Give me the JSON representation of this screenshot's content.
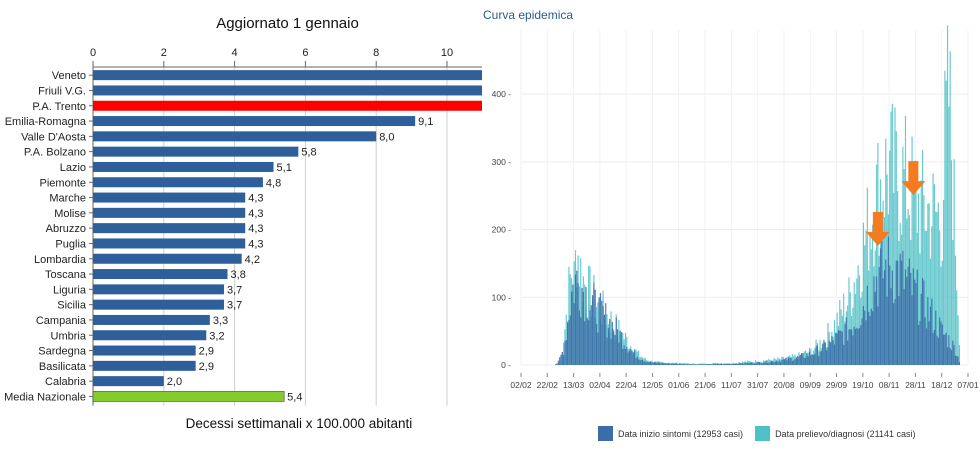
{
  "chart_data": [
    {
      "type": "bar",
      "orientation": "horizontal",
      "title": "Aggiornato 1 gennaio",
      "xlabel": "Decessi settimanali x 100.000 abitanti",
      "xlim": [
        0,
        11
      ],
      "xticks": [
        "0",
        "2",
        "4",
        "6",
        "8",
        "10"
      ],
      "categories": [
        "Veneto",
        "Friuli V.G.",
        "P.A. Trento",
        "Emilia-Romagna",
        "Valle D'Aosta",
        "P.A. Bolzano",
        "Lazio",
        "Piemonte",
        "Marche",
        "Molise",
        "Abruzzo",
        "Puglia",
        "Lombardia",
        "Toscana",
        "Liguria",
        "Sicilia",
        "Campania",
        "Umbria",
        "Sardegna",
        "Basilicata",
        "Calabria",
        "Media Nazionale"
      ],
      "values": [
        11,
        11,
        11,
        9.1,
        8.0,
        5.8,
        5.1,
        4.8,
        4.3,
        4.3,
        4.3,
        4.3,
        4.2,
        3.8,
        3.7,
        3.7,
        3.3,
        3.2,
        2.9,
        2.9,
        2.0,
        5.4
      ],
      "value_labels": [
        "",
        "",
        "",
        "9,1",
        "8,0",
        "5,8",
        "5,1",
        "4,8",
        "4,3",
        "4,3",
        "4,3",
        "4,3",
        "4,2",
        "3,8",
        "3,7",
        "3,7",
        "3,3",
        "3,2",
        "2,9",
        "2,9",
        "2,0",
        "5,4"
      ],
      "colors": {
        "default": "#2e5f9a",
        "highlight": "#ff0000",
        "national": "#84cc2c"
      },
      "highlight_category": "P.A. Trento",
      "national_category": "Media Nazionale",
      "grid": true
    },
    {
      "type": "bar",
      "title": "Curva epidemica",
      "ylim": [
        0,
        480
      ],
      "yticks": [
        "0 -",
        "100 -",
        "200 -",
        "300 -",
        "400 -"
      ],
      "xticks": [
        "02/02",
        "22/02",
        "13/03",
        "02/04",
        "22/04",
        "12/05",
        "01/06",
        "21/06",
        "11/07",
        "31/07",
        "20/08",
        "09/09",
        "29/09",
        "19/10",
        "08/11",
        "28/11",
        "18/12",
        "07/01"
      ],
      "series": [
        {
          "name": "Data inizio sintomi (12953 casi)",
          "color": "#3b6ea8",
          "segments": [
            [
              0,
              0
            ],
            [
              25,
              0
            ],
            [
              28,
              5
            ],
            [
              32,
              25
            ],
            [
              35,
              70
            ],
            [
              38,
              115
            ],
            [
              41,
              135
            ],
            [
              45,
              128
            ],
            [
              50,
              110
            ],
            [
              55,
              95
            ],
            [
              60,
              82
            ],
            [
              65,
              72
            ],
            [
              70,
              60
            ],
            [
              75,
              48
            ],
            [
              80,
              34
            ],
            [
              85,
              20
            ],
            [
              90,
              12
            ],
            [
              95,
              6
            ],
            [
              100,
              4
            ],
            [
              110,
              3
            ],
            [
              120,
              2
            ],
            [
              130,
              1
            ],
            [
              140,
              1
            ],
            [
              150,
              2
            ],
            [
              160,
              2
            ],
            [
              170,
              3
            ],
            [
              180,
              4
            ],
            [
              190,
              6
            ],
            [
              200,
              8
            ],
            [
              210,
              12
            ],
            [
              220,
              18
            ],
            [
              230,
              28
            ],
            [
              240,
              42
            ],
            [
              250,
              60
            ],
            [
              255,
              75
            ],
            [
              260,
              95
            ],
            [
              265,
              120
            ],
            [
              270,
              140
            ],
            [
              275,
              150
            ],
            [
              280,
              155
            ],
            [
              285,
              150
            ],
            [
              290,
              140
            ],
            [
              295,
              128
            ],
            [
              300,
              112
            ],
            [
              305,
              100
            ],
            [
              310,
              85
            ],
            [
              315,
              70
            ],
            [
              320,
              52
            ],
            [
              325,
              40
            ],
            [
              330,
              25
            ],
            [
              334,
              0
            ]
          ],
          "note": ""
        },
        {
          "name": "Data prelievo/diagnosi (21141 casi)",
          "color": "#4ec0c6",
          "segments": [
            [
              0,
              0
            ],
            [
              28,
              0
            ],
            [
              30,
              15
            ],
            [
              33,
              60
            ],
            [
              36,
              120
            ],
            [
              38,
              150
            ],
            [
              40,
              135
            ],
            [
              42,
              190
            ],
            [
              44,
              160
            ],
            [
              46,
              140
            ],
            [
              50,
              120
            ],
            [
              55,
              105
            ],
            [
              60,
              90
            ],
            [
              65,
              78
            ],
            [
              70,
              65
            ],
            [
              75,
              52
            ],
            [
              80,
              40
            ],
            [
              85,
              25
            ],
            [
              90,
              15
            ],
            [
              95,
              8
            ],
            [
              100,
              5
            ],
            [
              110,
              3
            ],
            [
              120,
              3
            ],
            [
              130,
              2
            ],
            [
              140,
              2
            ],
            [
              150,
              3
            ],
            [
              155,
              2
            ],
            [
              160,
              3
            ],
            [
              170,
              5
            ],
            [
              180,
              6
            ],
            [
              190,
              8
            ],
            [
              200,
              10
            ],
            [
              210,
              14
            ],
            [
              220,
              22
            ],
            [
              230,
              40
            ],
            [
              240,
              70
            ],
            [
              250,
              110
            ],
            [
              255,
              150
            ],
            [
              260,
              190
            ],
            [
              265,
              230
            ],
            [
              270,
              270
            ],
            [
              275,
              300
            ],
            [
              280,
              310
            ],
            [
              285,
              300
            ],
            [
              290,
              295
            ],
            [
              295,
              280
            ],
            [
              300,
              260
            ],
            [
              305,
              250
            ],
            [
              310,
              245
            ],
            [
              315,
              240
            ],
            [
              320,
              235
            ],
            [
              322,
              350
            ],
            [
              325,
              430
            ],
            [
              328,
              300
            ],
            [
              331,
              150
            ],
            [
              334,
              0
            ]
          ],
          "note": ""
        }
      ],
      "annotations": [
        {
          "kind": "arrow",
          "color": "#f47b20",
          "x_day": 276,
          "y": 170
        },
        {
          "kind": "arrow",
          "color": "#f47b20",
          "x_day": 303,
          "y": 245
        }
      ],
      "grid": true
    }
  ]
}
